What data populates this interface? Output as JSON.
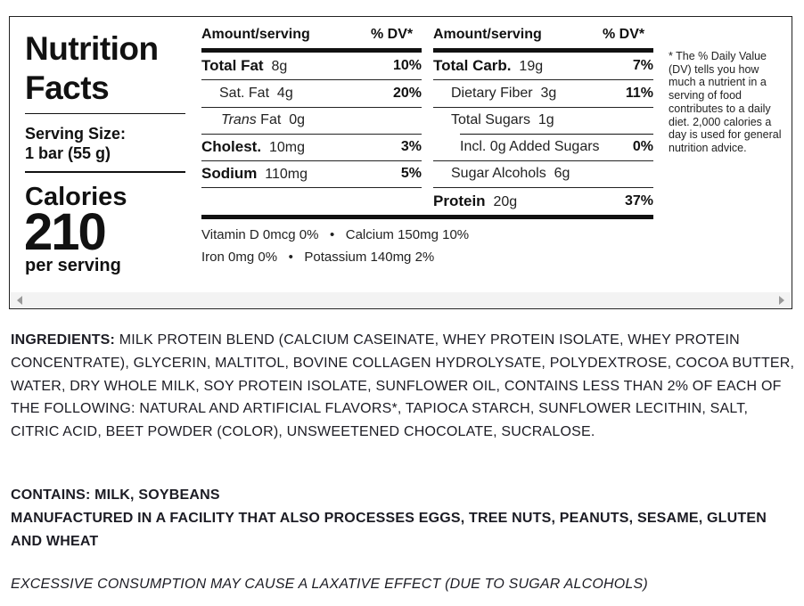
{
  "label": {
    "title_line1": "Nutrition",
    "title_line2": "Facts",
    "serving_size_label": "Serving Size:",
    "serving_size_value": "1 bar (55 g)",
    "calories_label": "Calories",
    "calories_value": "210",
    "per_serving": "per serving",
    "header_amount": "Amount/serving",
    "header_dv": "% DV*",
    "left_rows": [
      {
        "name": "Total Fat",
        "amount": "8g",
        "dv": "10%"
      },
      {
        "name": "Sat. Fat",
        "amount": "4g",
        "dv": "20%"
      },
      {
        "name": "Trans",
        "name_rest": "Fat",
        "amount": "0g",
        "dv": ""
      },
      {
        "name": "Cholest.",
        "amount": "10mg",
        "dv": "3%"
      },
      {
        "name": "Sodium",
        "amount": "110mg",
        "dv": "5%"
      }
    ],
    "right_rows": [
      {
        "name": "Total Carb.",
        "amount": "19g",
        "dv": "7%"
      },
      {
        "name": "Dietary Fiber",
        "amount": "3g",
        "dv": "11%"
      },
      {
        "name": "Total Sugars",
        "amount": "1g",
        "dv": ""
      },
      {
        "name": "Incl. 0g Added Sugars",
        "amount": "",
        "dv": "0%"
      },
      {
        "name": "Sugar Alcohols",
        "amount": "6g",
        "dv": ""
      },
      {
        "name": "Protein",
        "amount": "20g",
        "dv": "37%"
      }
    ],
    "vitamins_line1": [
      "Vitamin D 0mcg 0%",
      "Calcium 150mg 10%"
    ],
    "vitamins_line2": [
      "Iron 0mg 0%",
      "Potassium 140mg 2%"
    ],
    "bullet": "•",
    "footnote": "* The % Daily Value (DV) tells you how much a nutrient in a serving of food contributes to a daily diet. 2,000 calories a day is used for general nutrition advice."
  },
  "ingredients": {
    "label": "INGREDIENTS:",
    "text": "MILK PROTEIN BLEND (CALCIUM CASEINATE, WHEY PROTEIN ISOLATE, WHEY PROTEIN CONCENTRATE), GLYCERIN, MALTITOL, BOVINE COLLAGEN HYDROLYSATE, POLYDEXTROSE, COCOA BUTTER, WATER, DRY WHOLE MILK, SOY PROTEIN ISOLATE, SUNFLOWER OIL, CONTAINS LESS THAN 2% OF EACH OF THE FOLLOWING: NATURAL AND ARTIFICIAL FLAVORS*, TAPIOCA STARCH, SUNFLOWER LECITHIN, SALT, CITRIC ACID, BEET POWDER (COLOR), UNSWEETENED CHOCOLATE, SUCRALOSE."
  },
  "allergens": {
    "contains": "CONTAINS: MILK, SOYBEANS",
    "facility": "MANUFACTURED IN A FACILITY THAT ALSO PROCESSES EGGS, TREE NUTS, PEANUTS, SESAME, GLUTEN AND WHEAT"
  },
  "warning": "EXCESSIVE CONSUMPTION MAY CAUSE A LAXATIVE EFFECT (DUE TO SUGAR ALCOHOLS)"
}
